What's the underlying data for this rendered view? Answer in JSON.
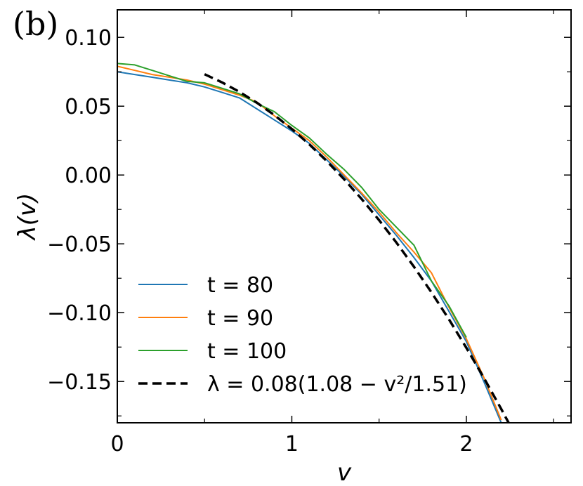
{
  "panel_label": "(b)",
  "chart_data": {
    "type": "line",
    "xlabel": "v",
    "ylabel": "λ(v)",
    "xlim": [
      0,
      2.6
    ],
    "ylim": [
      -0.18,
      0.12
    ],
    "x_ticks": [
      {
        "value": 0,
        "label": "0"
      },
      {
        "value": 1,
        "label": "1"
      },
      {
        "value": 2,
        "label": "2"
      }
    ],
    "y_ticks": [
      {
        "value": 0.1,
        "label": "0.10"
      },
      {
        "value": 0.05,
        "label": "0.05"
      },
      {
        "value": 0.0,
        "label": "0.00"
      },
      {
        "value": -0.05,
        "label": "−0.05"
      },
      {
        "value": -0.1,
        "label": "−0.10"
      },
      {
        "value": -0.15,
        "label": "−0.15"
      }
    ],
    "legend_position": "bottom-left",
    "series": [
      {
        "name": "t = 80",
        "color": "#1f77b4",
        "x": [
          0.0,
          0.1,
          0.2,
          0.3,
          0.4,
          0.5,
          0.6,
          0.7,
          0.8,
          0.9,
          1.0,
          1.1,
          1.2,
          1.3,
          1.4,
          1.5,
          1.6,
          1.7,
          1.8,
          1.9,
          2.0,
          2.1,
          2.2
        ],
        "y": [
          0.075,
          0.073,
          0.071,
          0.069,
          0.067,
          0.064,
          0.06,
          0.056,
          0.048,
          0.04,
          0.032,
          0.023,
          0.011,
          -0.001,
          -0.014,
          -0.029,
          -0.044,
          -0.06,
          -0.077,
          -0.099,
          -0.121,
          -0.15,
          -0.18
        ]
      },
      {
        "name": "t = 90",
        "color": "#ff7f0e",
        "x": [
          0.0,
          0.1,
          0.2,
          0.3,
          0.4,
          0.5,
          0.6,
          0.7,
          0.8,
          0.9,
          1.0,
          1.1,
          1.2,
          1.3,
          1.4,
          1.5,
          1.6,
          1.7,
          1.8,
          1.9,
          2.0,
          2.1,
          2.2
        ],
        "y": [
          0.079,
          0.076,
          0.073,
          0.071,
          0.069,
          0.066,
          0.062,
          0.058,
          0.053,
          0.043,
          0.034,
          0.025,
          0.013,
          0.0,
          -0.013,
          -0.027,
          -0.042,
          -0.056,
          -0.071,
          -0.096,
          -0.119,
          -0.147,
          -0.178
        ]
      },
      {
        "name": "t = 100",
        "color": "#2ca02c",
        "x": [
          0.0,
          0.1,
          0.2,
          0.3,
          0.4,
          0.5,
          0.6,
          0.7,
          0.8,
          0.9,
          1.0,
          1.1,
          1.2,
          1.3,
          1.4,
          1.5,
          1.6,
          1.7,
          1.8,
          1.9,
          2.0
        ],
        "y": [
          0.081,
          0.08,
          0.076,
          0.072,
          0.068,
          0.067,
          0.063,
          0.059,
          0.052,
          0.046,
          0.036,
          0.027,
          0.015,
          0.004,
          -0.009,
          -0.025,
          -0.038,
          -0.051,
          -0.077,
          -0.095,
          -0.118
        ]
      },
      {
        "name": "λ = 0.08(1.08 − v²/1.51)",
        "color": "#000000",
        "dashed": true,
        "x": [
          0.5,
          0.6,
          0.7,
          0.8,
          0.9,
          1.0,
          1.1,
          1.2,
          1.3,
          1.4,
          1.5,
          1.6,
          1.7,
          1.8,
          1.9,
          2.0,
          2.1,
          2.2,
          2.25
        ],
        "y": [
          0.0732,
          0.0673,
          0.0604,
          0.0525,
          0.0435,
          0.0334,
          0.0223,
          0.0101,
          -0.0031,
          -0.0174,
          -0.0328,
          -0.0492,
          -0.0667,
          -0.0852,
          -0.1048,
          -0.1255,
          -0.1473,
          -0.17,
          -0.1818
        ]
      }
    ]
  }
}
